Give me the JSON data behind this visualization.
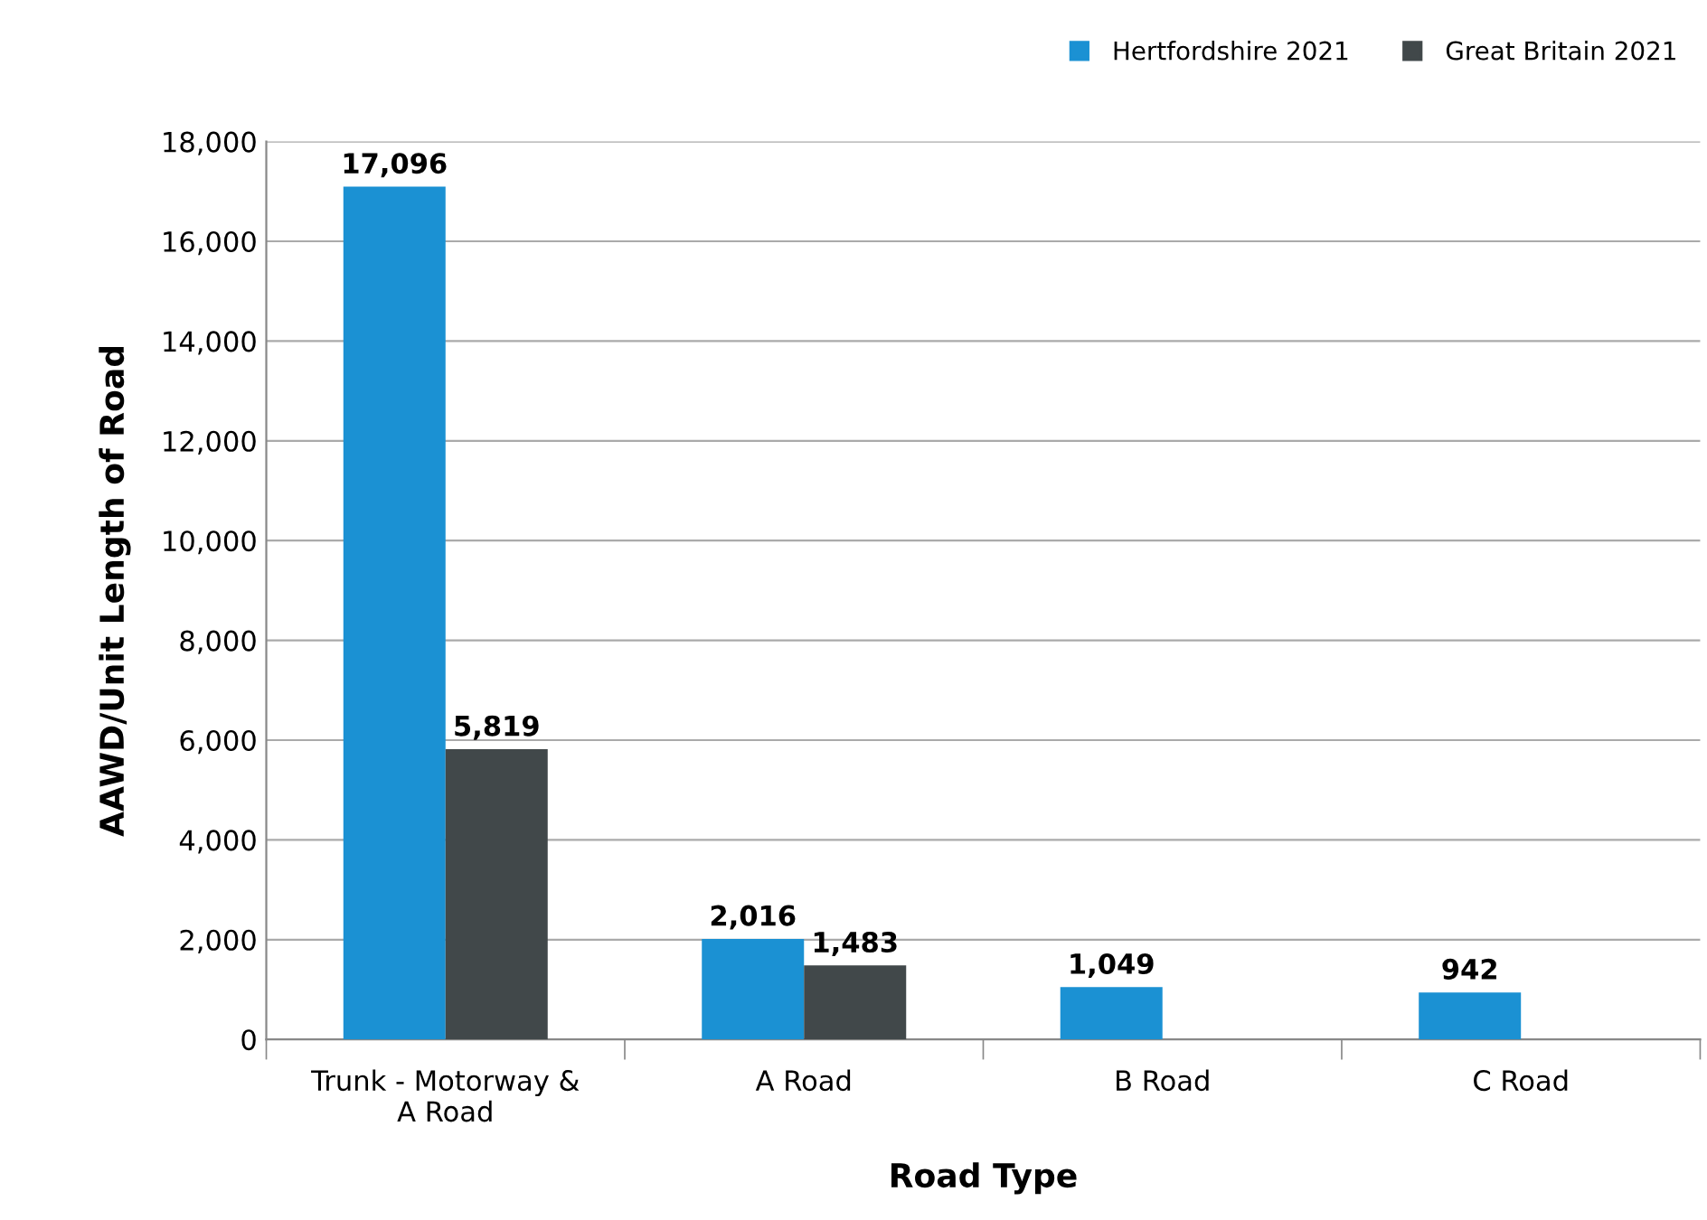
{
  "chart_data": {
    "type": "bar",
    "xlabel": "Road Type",
    "ylabel": "AAWD/Unit Length of Road",
    "categories": [
      "Trunk - Motorway &\nA Road",
      "A Road",
      "B Road",
      "C Road"
    ],
    "series": [
      {
        "name": "Hertfordshire 2021",
        "color": "#1b91d3",
        "values": [
          17096,
          2016,
          1049,
          942
        ],
        "value_labels": [
          "17,096",
          "2,016",
          "1,049",
          "942"
        ]
      },
      {
        "name": "Great Britain 2021",
        "color": "#41484a",
        "values": [
          5819,
          1483,
          null,
          null
        ],
        "value_labels": [
          "5,819",
          "1,483",
          null,
          null
        ]
      }
    ],
    "ylim": [
      0,
      18000
    ],
    "yticks": [
      {
        "value": 0,
        "label": "0"
      },
      {
        "value": 2000,
        "label": "2,000"
      },
      {
        "value": 4000,
        "label": "4,000"
      },
      {
        "value": 6000,
        "label": "6,000"
      },
      {
        "value": 8000,
        "label": "8,000"
      },
      {
        "value": 10000,
        "label": "10,000"
      },
      {
        "value": 12000,
        "label": "12,000"
      },
      {
        "value": 14000,
        "label": "14,000"
      },
      {
        "value": 16000,
        "label": "16,000"
      },
      {
        "value": 18000,
        "label": "18,000"
      }
    ],
    "grid": "y",
    "legend": "top right"
  }
}
